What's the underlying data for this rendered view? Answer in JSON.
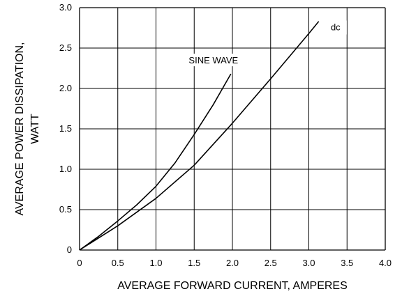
{
  "chart_data": {
    "type": "line",
    "title": "",
    "xlabel": "AVERAGE FORWARD CURRENT, AMPERES",
    "ylabel_line1": "AVERAGE POWER DISSIPATION,",
    "ylabel_line2": "WATT",
    "xlim": [
      0,
      4.0
    ],
    "ylim": [
      0,
      3.0
    ],
    "x_ticks": [
      "0",
      "0.5",
      "1.0",
      "1.5",
      "2.0",
      "2.5",
      "3.0",
      "3.5",
      "4.0"
    ],
    "y_ticks": [
      "0",
      "0.5",
      "1.0",
      "1.5",
      "2.0",
      "2.5",
      "3.0"
    ],
    "grid": true,
    "series": [
      {
        "name": "SINE WAVE",
        "x": [
          0,
          0.25,
          0.5,
          0.75,
          1.0,
          1.25,
          1.5,
          1.75,
          1.98
        ],
        "y": [
          0,
          0.17,
          0.36,
          0.56,
          0.79,
          1.08,
          1.43,
          1.8,
          2.18
        ]
      },
      {
        "name": "dc",
        "x": [
          0,
          0.5,
          1.0,
          1.5,
          2.0,
          2.5,
          3.0,
          3.13
        ],
        "y": [
          0,
          0.3,
          0.64,
          1.05,
          1.57,
          2.12,
          2.68,
          2.83
        ]
      }
    ]
  }
}
